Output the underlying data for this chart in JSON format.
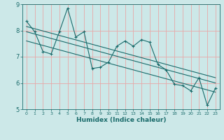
{
  "xlabel": "Humidex (Indice chaleur)",
  "ylabel": "",
  "xlim": [
    -0.5,
    23.5
  ],
  "ylim": [
    5,
    9
  ],
  "yticks": [
    5,
    6,
    7,
    8,
    9
  ],
  "xticks": [
    0,
    1,
    2,
    3,
    4,
    5,
    6,
    7,
    8,
    9,
    10,
    11,
    12,
    13,
    14,
    15,
    16,
    17,
    18,
    19,
    20,
    21,
    22,
    23
  ],
  "bg_color": "#cce8e8",
  "grid_color": "#e8a8a8",
  "line_color": "#1a6b6b",
  "line1_x": [
    0,
    1,
    2,
    3,
    4,
    5,
    6,
    7,
    8,
    9,
    10,
    11,
    12,
    13,
    14,
    15,
    16,
    17,
    18,
    19,
    20,
    21,
    22,
    23
  ],
  "line1_y": [
    8.35,
    7.95,
    7.2,
    7.1,
    7.95,
    8.85,
    7.75,
    7.95,
    6.55,
    6.6,
    6.8,
    7.4,
    7.6,
    7.4,
    7.65,
    7.55,
    6.7,
    6.5,
    5.95,
    5.9,
    5.7,
    6.2,
    5.15,
    5.8
  ],
  "trend1_x": [
    0,
    23
  ],
  "trend1_y": [
    8.15,
    6.2
  ],
  "trend2_x": [
    0,
    23
  ],
  "trend2_y": [
    7.95,
    6.0
  ],
  "trend3_x": [
    0,
    23
  ],
  "trend3_y": [
    7.6,
    5.65
  ]
}
